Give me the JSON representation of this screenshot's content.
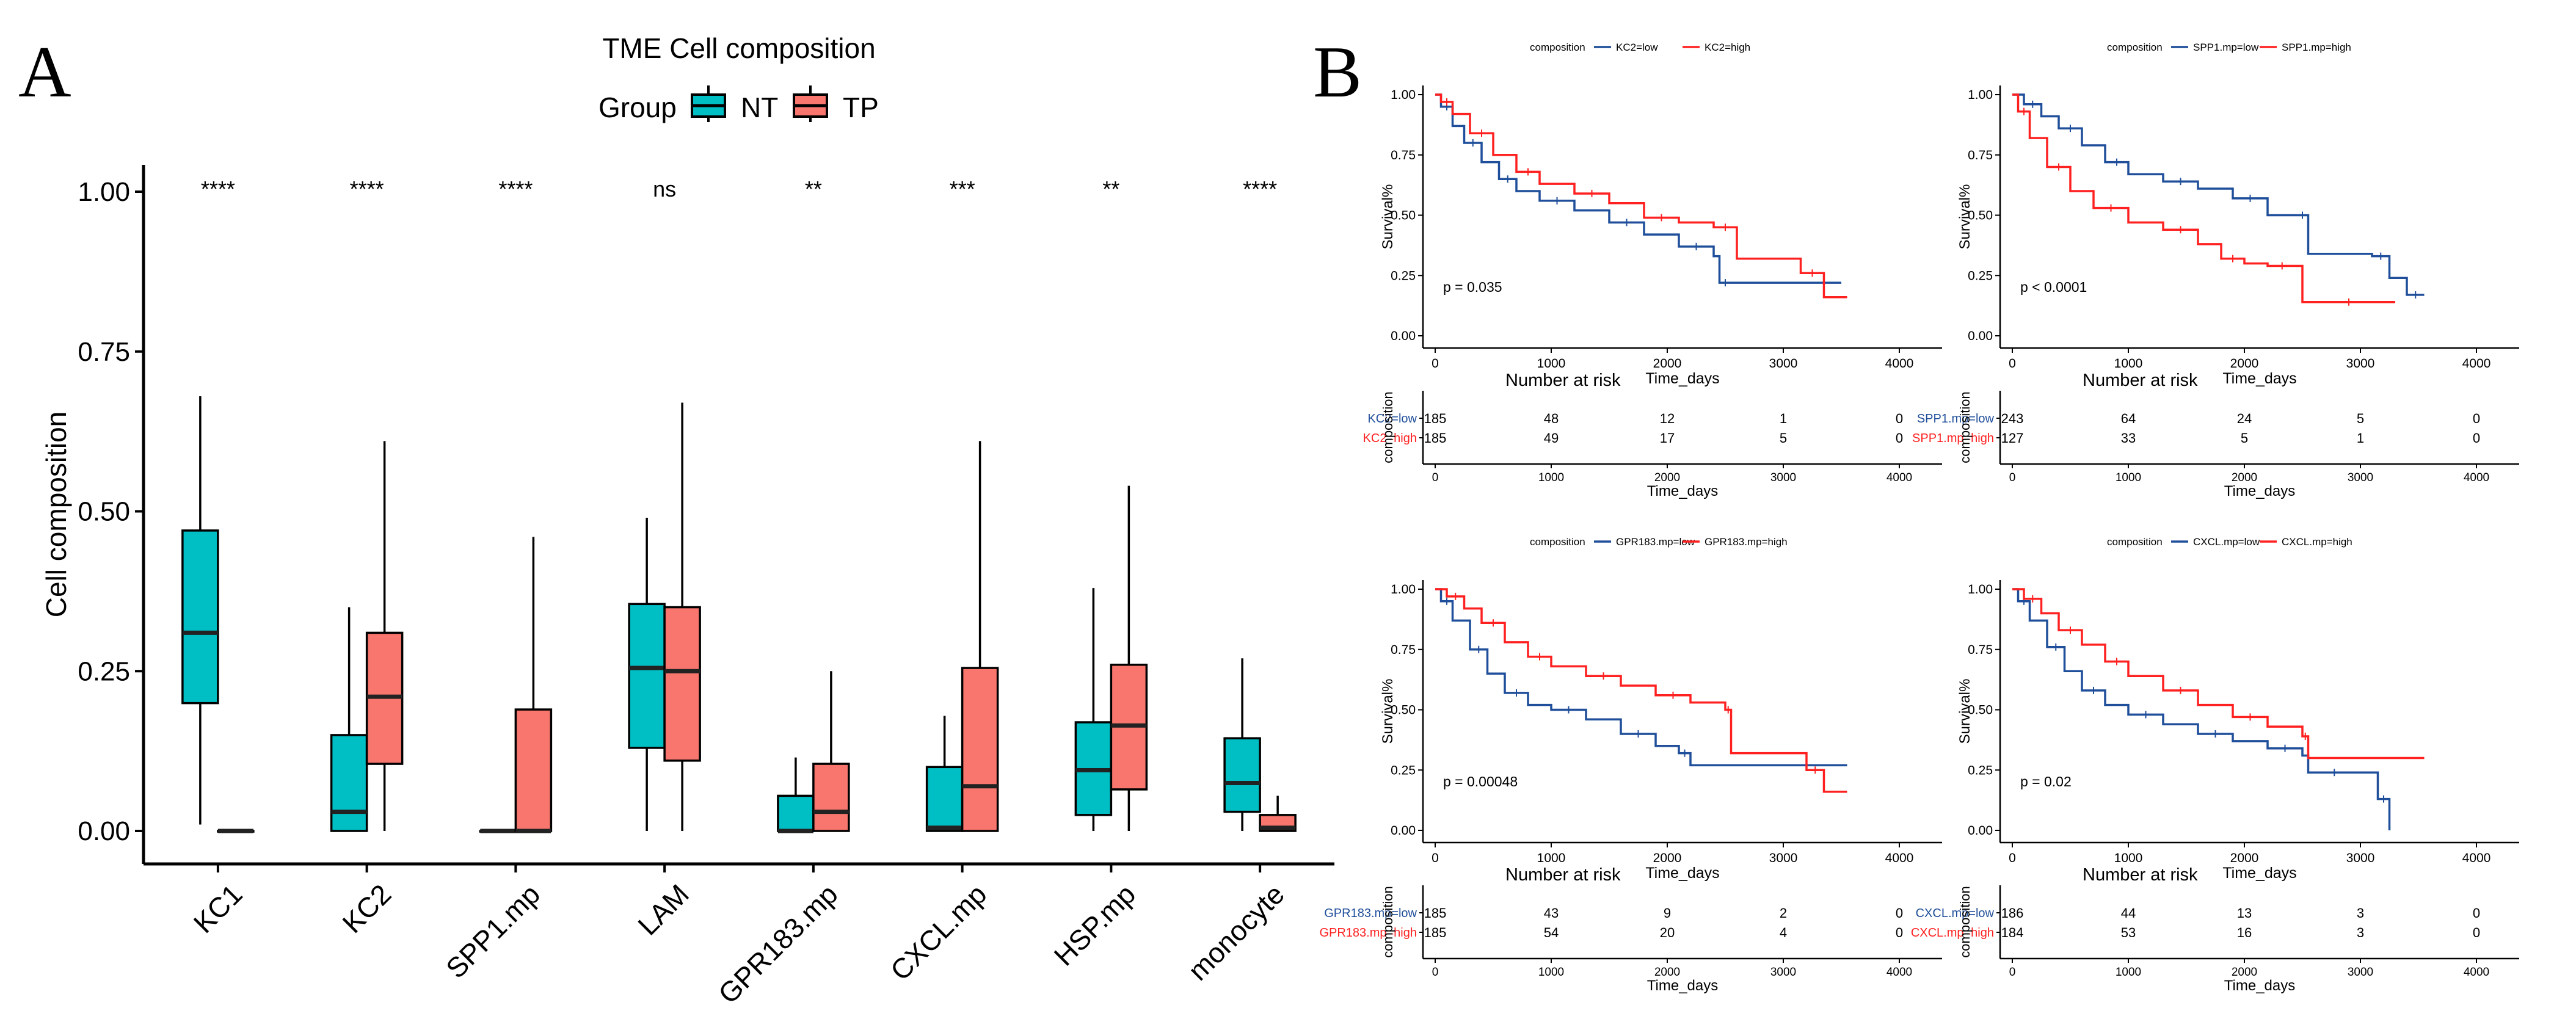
{
  "panel_a_letter": "A",
  "panel_b_letter": "B",
  "colors": {
    "NT": "#00BFC4",
    "TP": "#F8766D",
    "low": "#1F4E9A",
    "high": "#FF2020"
  },
  "chart_data": [
    {
      "type": "boxplot",
      "title": "TME Cell composition",
      "legend": {
        "title": "Group",
        "entries": [
          "NT",
          "TP"
        ],
        "position": "top"
      },
      "ylabel": "Cell composition",
      "xlabel": "",
      "ylim": [
        0,
        1.05
      ],
      "yticks": [
        0.0,
        0.25,
        0.5,
        0.75,
        1.0
      ],
      "ytick_labels": [
        "0.00",
        "0.25",
        "0.50",
        "0.75",
        "1.00"
      ],
      "categories": [
        "KC1",
        "KC2",
        "SPP1.mp",
        "LAM",
        "GPR183.mp",
        "CXCL.mp",
        "HSP.mp",
        "monocyte"
      ],
      "significance": [
        "****",
        "****",
        "****",
        "ns",
        "**",
        "***",
        "**",
        "****"
      ],
      "series": [
        {
          "name": "NT",
          "boxes": [
            [
              0.01,
              0.2,
              0.31,
              0.47,
              0.68
            ],
            [
              0.0,
              0.0,
              0.03,
              0.15,
              0.35
            ],
            [
              0.0,
              0.0,
              0.0,
              0.0,
              0.0
            ],
            [
              0.0,
              0.13,
              0.255,
              0.355,
              0.49
            ],
            [
              0.0,
              0.0,
              0.0,
              0.055,
              0.115
            ],
            [
              0.0,
              0.0,
              0.005,
              0.1,
              0.18
            ],
            [
              0.0,
              0.025,
              0.095,
              0.17,
              0.38
            ],
            [
              0.0,
              0.03,
              0.075,
              0.145,
              0.27
            ]
          ]
        },
        {
          "name": "TP",
          "boxes": [
            [
              0.0,
              0.0,
              0.0,
              0.0,
              0.0
            ],
            [
              0.0,
              0.105,
              0.21,
              0.31,
              0.61
            ],
            [
              0.0,
              0.0,
              0.0,
              0.19,
              0.46
            ],
            [
              0.0,
              0.11,
              0.25,
              0.35,
              0.67
            ],
            [
              0.0,
              0.0,
              0.03,
              0.105,
              0.25
            ],
            [
              0.0,
              0.0,
              0.07,
              0.255,
              0.61
            ],
            [
              0.0,
              0.065,
              0.165,
              0.26,
              0.54
            ],
            [
              0.0,
              0.0,
              0.005,
              0.025,
              0.055
            ]
          ]
        }
      ]
    },
    {
      "type": "line",
      "subtype": "kaplan-meier",
      "legend": {
        "title": "composition",
        "entries": [
          "KC2=low",
          "KC2=high"
        ],
        "position": "top"
      },
      "xlabel": "Time_days",
      "ylabel": "Survival%",
      "xlim": [
        0,
        4000
      ],
      "ylim": [
        0,
        1
      ],
      "xticks": [
        0,
        1000,
        2000,
        3000,
        4000
      ],
      "yticks": [
        "0.00",
        "0.25",
        "0.50",
        "0.75",
        "1.00"
      ],
      "pvalue": "p = 0.035",
      "series": [
        {
          "name": "KC2=low",
          "x": [
            0,
            50,
            150,
            250,
            400,
            550,
            700,
            900,
            1200,
            1500,
            1800,
            2100,
            2400,
            2450,
            2550,
            3500
          ],
          "y": [
            1.0,
            0.95,
            0.87,
            0.8,
            0.72,
            0.65,
            0.6,
            0.56,
            0.52,
            0.47,
            0.42,
            0.37,
            0.33,
            0.22,
            0.22,
            0.22
          ]
        },
        {
          "name": "KC2=high",
          "x": [
            0,
            50,
            150,
            300,
            500,
            700,
            900,
            1200,
            1500,
            1800,
            2100,
            2400,
            2600,
            3150,
            3350,
            3550
          ],
          "y": [
            1.0,
            0.97,
            0.92,
            0.84,
            0.75,
            0.68,
            0.63,
            0.59,
            0.55,
            0.49,
            0.47,
            0.45,
            0.32,
            0.26,
            0.16,
            0.16
          ]
        }
      ],
      "risk_table": {
        "title": "Number at risk",
        "axis_label": "composition",
        "rows": [
          {
            "label": "KC2=low",
            "values": [
              "185",
              "48",
              "12",
              "1",
              "0"
            ]
          },
          {
            "label": "KC2=high",
            "values": [
              "185",
              "49",
              "17",
              "5",
              "0"
            ]
          }
        ]
      }
    },
    {
      "type": "line",
      "subtype": "kaplan-meier",
      "legend": {
        "title": "composition",
        "entries": [
          "SPP1.mp=low",
          "SPP1.mp=high"
        ],
        "position": "top"
      },
      "xlabel": "Time_days",
      "ylabel": "Survival%",
      "xlim": [
        0,
        4000
      ],
      "ylim": [
        0,
        1
      ],
      "xticks": [
        0,
        1000,
        2000,
        3000,
        4000
      ],
      "yticks": [
        "0.00",
        "0.25",
        "0.50",
        "0.75",
        "1.00"
      ],
      "pvalue": "p < 0.0001",
      "series": [
        {
          "name": "SPP1.mp=low",
          "x": [
            0,
            100,
            250,
            400,
            600,
            800,
            1000,
            1300,
            1600,
            1900,
            2200,
            2450,
            2550,
            3100,
            3250,
            3400,
            3550
          ],
          "y": [
            1.0,
            0.96,
            0.91,
            0.86,
            0.79,
            0.72,
            0.67,
            0.64,
            0.61,
            0.57,
            0.5,
            0.5,
            0.34,
            0.33,
            0.24,
            0.17,
            0.17
          ]
        },
        {
          "name": "SPP1.mp=high",
          "x": [
            0,
            50,
            150,
            300,
            500,
            700,
            1000,
            1300,
            1600,
            1800,
            2000,
            2200,
            2450,
            2500,
            3300
          ],
          "y": [
            1.0,
            0.93,
            0.82,
            0.7,
            0.6,
            0.53,
            0.47,
            0.44,
            0.38,
            0.32,
            0.3,
            0.29,
            0.29,
            0.14,
            0.14
          ]
        }
      ],
      "risk_table": {
        "title": "Number at risk",
        "axis_label": "composition",
        "rows": [
          {
            "label": "SPP1.mp=low",
            "values": [
              "243",
              "64",
              "24",
              "5",
              "0"
            ]
          },
          {
            "label": "SPP1.mp=high",
            "values": [
              "127",
              "33",
              "5",
              "1",
              "0"
            ]
          }
        ]
      }
    },
    {
      "type": "line",
      "subtype": "kaplan-meier",
      "legend": {
        "title": "composition",
        "entries": [
          "GPR183.mp=low",
          "GPR183.mp=high"
        ],
        "position": "top"
      },
      "xlabel": "Time_days",
      "ylabel": "Survival%",
      "xlim": [
        0,
        4000
      ],
      "ylim": [
        0,
        1
      ],
      "xticks": [
        0,
        1000,
        2000,
        3000,
        4000
      ],
      "yticks": [
        "0.00",
        "0.25",
        "0.50",
        "0.75",
        "1.00"
      ],
      "pvalue": "p = 0.00048",
      "series": [
        {
          "name": "GPR183.mp=low",
          "x": [
            0,
            50,
            150,
            300,
            450,
            600,
            800,
            1000,
            1300,
            1600,
            1900,
            2100,
            2200,
            3550
          ],
          "y": [
            1.0,
            0.95,
            0.87,
            0.75,
            0.65,
            0.57,
            0.52,
            0.5,
            0.46,
            0.4,
            0.35,
            0.32,
            0.27,
            0.27
          ]
        },
        {
          "name": "GPR183.mp=high",
          "x": [
            0,
            100,
            250,
            400,
            600,
            800,
            1000,
            1300,
            1600,
            1900,
            2200,
            2500,
            2550,
            3200,
            3350,
            3550
          ],
          "y": [
            1.0,
            0.97,
            0.92,
            0.86,
            0.78,
            0.72,
            0.68,
            0.64,
            0.6,
            0.56,
            0.53,
            0.5,
            0.32,
            0.25,
            0.16,
            0.16
          ]
        }
      ],
      "risk_table": {
        "title": "Number at risk",
        "axis_label": "composition",
        "rows": [
          {
            "label": "GPR183.mp=low",
            "values": [
              "185",
              "43",
              "9",
              "2",
              "0"
            ]
          },
          {
            "label": "GPR183.mp=high",
            "values": [
              "185",
              "54",
              "20",
              "4",
              "0"
            ]
          }
        ]
      }
    },
    {
      "type": "line",
      "subtype": "kaplan-meier",
      "legend": {
        "title": "composition",
        "entries": [
          "CXCL.mp=low",
          "CXCL.mp=high"
        ],
        "position": "top"
      },
      "xlabel": "Time_days",
      "ylabel": "Survival%",
      "xlim": [
        0,
        4000
      ],
      "ylim": [
        0,
        1
      ],
      "xticks": [
        0,
        1000,
        2000,
        3000,
        4000
      ],
      "yticks": [
        "0.00",
        "0.25",
        "0.50",
        "0.75",
        "1.00"
      ],
      "pvalue": "p = 0.02",
      "series": [
        {
          "name": "CXCL.mp=low",
          "x": [
            0,
            50,
            150,
            300,
            450,
            600,
            800,
            1000,
            1300,
            1600,
            1900,
            2200,
            2500,
            2550,
            3000,
            3150,
            3250
          ],
          "y": [
            1.0,
            0.95,
            0.87,
            0.76,
            0.66,
            0.58,
            0.52,
            0.48,
            0.44,
            0.4,
            0.37,
            0.34,
            0.31,
            0.24,
            0.24,
            0.13,
            0.0
          ]
        },
        {
          "name": "CXCL.mp=high",
          "x": [
            0,
            100,
            250,
            400,
            600,
            800,
            1000,
            1300,
            1600,
            1900,
            2200,
            2500,
            2550,
            3550
          ],
          "y": [
            1.0,
            0.96,
            0.9,
            0.83,
            0.77,
            0.7,
            0.64,
            0.58,
            0.52,
            0.47,
            0.43,
            0.39,
            0.3,
            0.3
          ]
        }
      ],
      "risk_table": {
        "title": "Number at risk",
        "axis_label": "composition",
        "rows": [
          {
            "label": "CXCL.mp=low",
            "values": [
              "186",
              "44",
              "13",
              "3",
              "0"
            ]
          },
          {
            "label": "CXCL.mp=high",
            "values": [
              "184",
              "53",
              "16",
              "3",
              "0"
            ]
          }
        ]
      }
    }
  ]
}
